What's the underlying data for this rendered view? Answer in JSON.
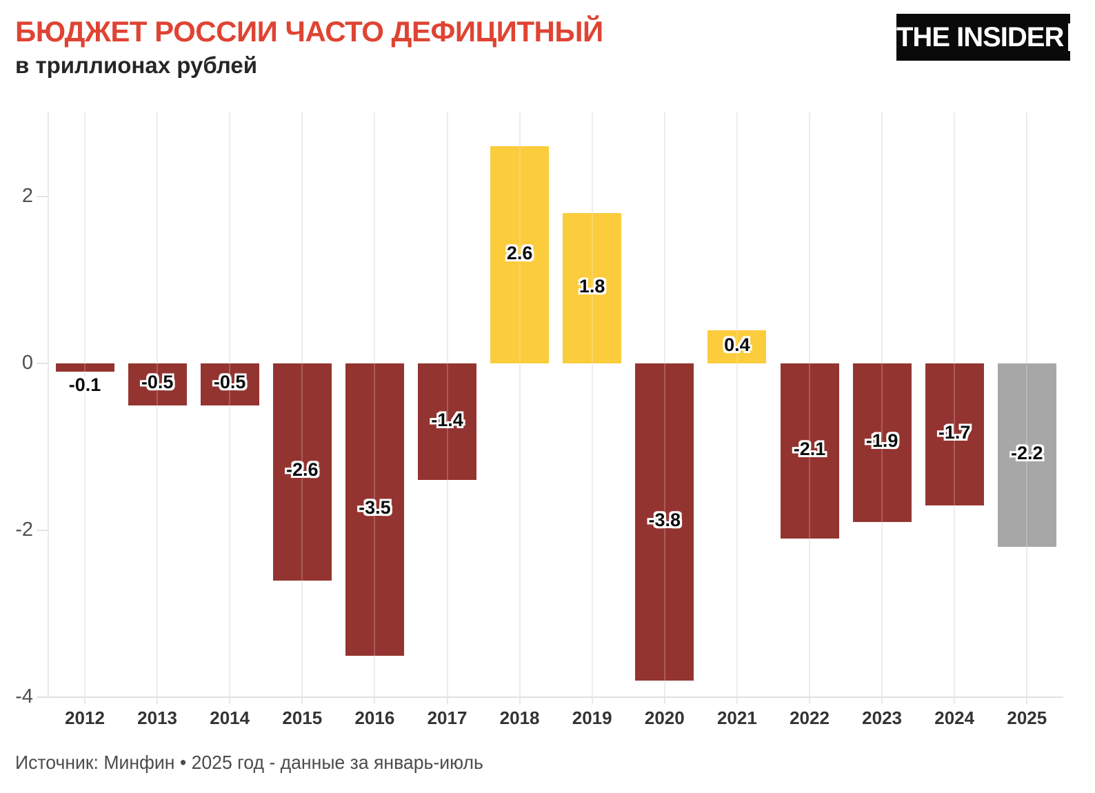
{
  "header": {
    "title": "БЮДЖЕТ РОССИИ ЧАСТО ДЕФИЦИТНЫЙ",
    "subtitle": "в триллионах рублей",
    "logo_text": "THE INSIDER"
  },
  "footer": {
    "source": "Источник: Минфин • 2025 год - данные за январь-июль"
  },
  "chart_data": {
    "type": "bar",
    "title": "БЮДЖЕТ РОССИИ ЧАСТО ДЕФИЦИТНЫЙ",
    "subtitle": "в триллионах рублей",
    "categories": [
      "2012",
      "2013",
      "2014",
      "2015",
      "2016",
      "2017",
      "2018",
      "2019",
      "2020",
      "2021",
      "2022",
      "2023",
      "2024",
      "2025"
    ],
    "values": [
      -0.1,
      -0.5,
      -0.5,
      -2.6,
      -3.5,
      -1.4,
      2.6,
      1.8,
      -3.8,
      0.4,
      -2.1,
      -1.9,
      -1.7,
      -2.2
    ],
    "labels": [
      "-0.1",
      "-0.5",
      "-0.5",
      "-2.6",
      "-3.5",
      "-1.4",
      "2.6",
      "1.8",
      "-3.8",
      "0.4",
      "-2.1",
      "-1.9",
      "-1.7",
      "-2.2"
    ],
    "bar_colors": [
      "#943431",
      "#943431",
      "#943431",
      "#943431",
      "#943431",
      "#943431",
      "#fbcc3c",
      "#fbcc3c",
      "#943431",
      "#fbcc3c",
      "#943431",
      "#943431",
      "#943431",
      "#a7a7a7"
    ],
    "colors": {
      "deficit": "#943431",
      "surplus": "#fbcc3c",
      "partial_year_2025": "#a7a7a7",
      "title_accent": "#df4433",
      "grid": "#e9e9e9",
      "value_label_outline": "#ffffff"
    },
    "yticks": [
      "2",
      "0",
      "-2",
      "-4"
    ],
    "ytick_values": [
      2,
      0,
      -2,
      -4
    ],
    "ylim": [
      -4,
      3.0
    ],
    "grid": "vertical",
    "legend": "none",
    "source": "Источник: Минфин • 2025 год - данные за январь-июль"
  }
}
